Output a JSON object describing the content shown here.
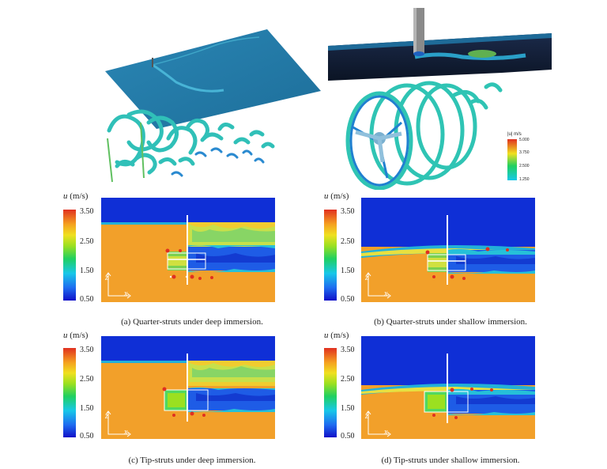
{
  "colorbar": {
    "symbol": "u",
    "unit": "(m/s)",
    "ticks": [
      "3.50",
      "2.50",
      "1.50",
      "0.50"
    ]
  },
  "render_legend": {
    "title": "|u| m/s",
    "ticks": [
      "5.000",
      "3.750",
      "2.500",
      "1.250"
    ]
  },
  "axes_indicator": {
    "z": "z",
    "x": "x"
  },
  "panels": [
    {
      "caption": "(a) Quarter-struts under deep immersion."
    },
    {
      "caption": "(b) Quarter-struts under shallow immersion."
    },
    {
      "caption": "(c) Tip-struts under deep immersion."
    },
    {
      "caption": "(d) Tip-struts under shallow immersion."
    }
  ],
  "colors": {
    "water_far": "#f3a329",
    "air": "#0f2fd6",
    "wake": "#1a60e6",
    "free_surface": "#1fb0d8"
  }
}
